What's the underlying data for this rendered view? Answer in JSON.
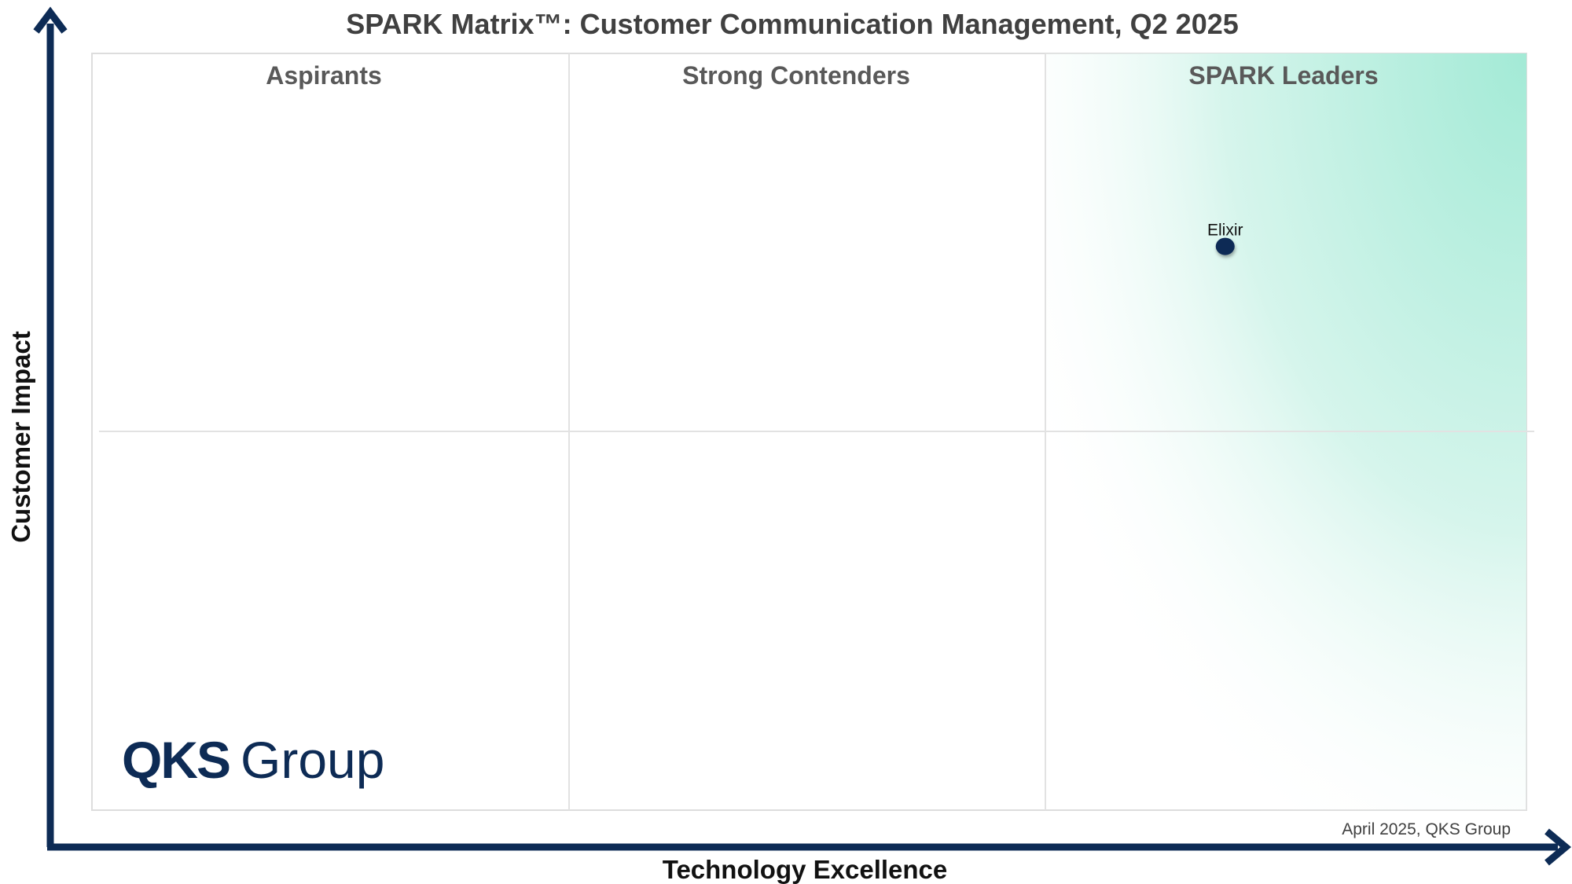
{
  "chart_data": {
    "type": "scatter",
    "title": "SPARK Matrix™: Customer Communication Management, Q2 2025",
    "xlabel": "Technology Excellence",
    "ylabel": "Customer Impact",
    "quadrants": [
      "Aspirants",
      "Strong Contenders",
      "SPARK Leaders"
    ],
    "points": [
      {
        "label": "Elixir",
        "x": 0.79,
        "y": 0.745
      }
    ],
    "xlim": [
      0,
      1
    ],
    "ylim": [
      0,
      1
    ],
    "grid": true,
    "colors": {
      "axis": "#0d2b55",
      "point": "#0d2b55",
      "leaders_gradient": "#a3ead6"
    }
  },
  "footnote": "April 2025, QKS Group",
  "logo": {
    "brand": "QKS",
    "suffix": "Group"
  }
}
